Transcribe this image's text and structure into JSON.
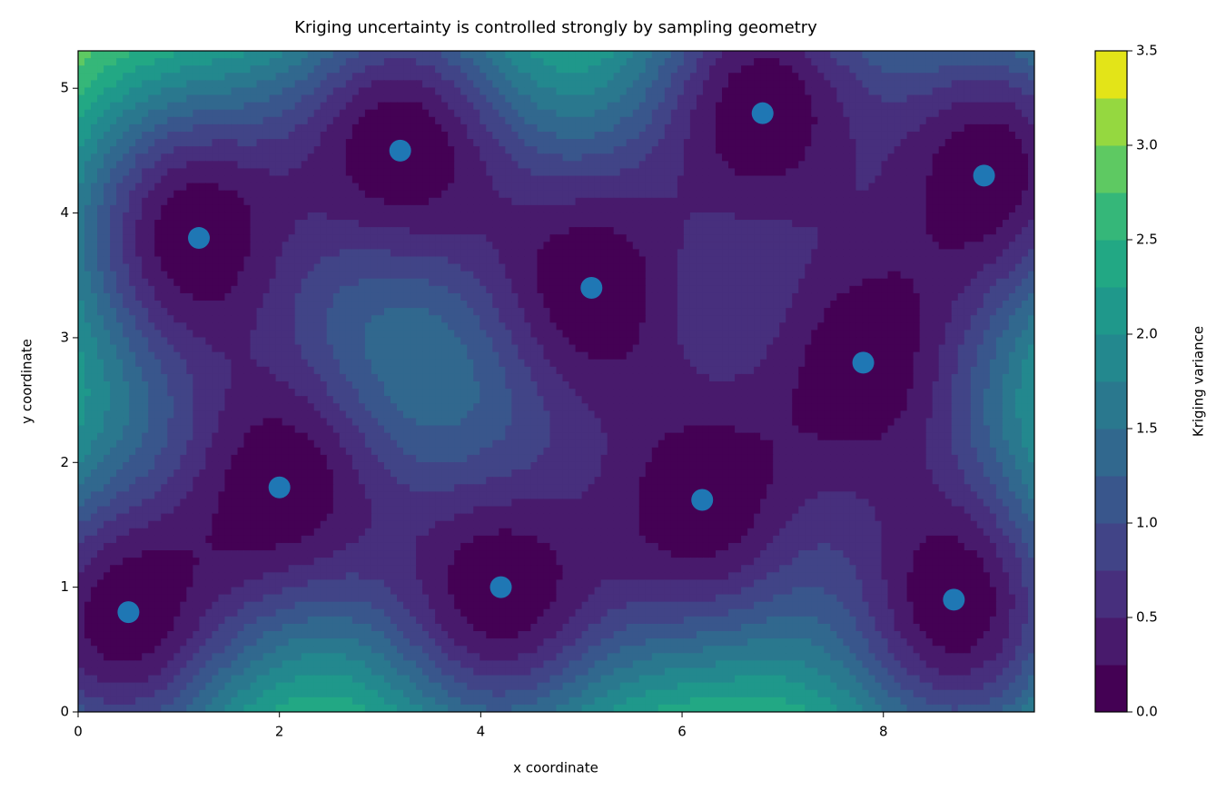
{
  "chart_data": {
    "type": "contour",
    "title": "Kriging uncertainty is controlled strongly by sampling geometry",
    "xlabel": "x coordinate",
    "ylabel": "y coordinate",
    "x": [
      0.5,
      1.2,
      2.0,
      3.2,
      4.2,
      5.1,
      6.2,
      6.8,
      7.8,
      8.7,
      9.0
    ],
    "values": [
      0.8,
      3.8,
      1.8,
      4.5,
      1.0,
      3.4,
      1.7,
      4.8,
      2.8,
      0.9,
      4.3
    ],
    "color": "#1f77b4",
    "xlim": [
      0,
      9.5
    ],
    "ylim": [
      0,
      5.3
    ],
    "xticks": [
      0,
      2,
      4,
      6,
      8
    ],
    "yticks": [
      0,
      1,
      2,
      3,
      4,
      5
    ],
    "colorbar": {
      "label": "Kriging variance",
      "lim": [
        0,
        3.5
      ],
      "ticks": [
        {
          "value": 0,
          "label": "0.0"
        },
        0.5,
        {
          "value": 1,
          "label": "1.0"
        },
        1.5,
        {
          "value": 2,
          "label": "2.0"
        },
        2.5,
        {
          "value": 3,
          "label": "3.0"
        },
        3.5
      ],
      "levels": [
        0,
        0.25,
        0.5,
        0.75,
        1,
        1.25,
        1.5,
        1.75,
        2,
        2.25,
        2.5,
        2.75,
        3,
        3.25,
        3.5
      ],
      "colors": [
        "#440154",
        "#481a6c",
        "#472f7d",
        "#414487",
        "#39568c",
        "#31688e",
        "#2a788e",
        "#23888e",
        "#1f988b",
        "#22a884",
        "#35b779",
        "#5ec962",
        "#95d840",
        "#e3e418"
      ]
    }
  }
}
